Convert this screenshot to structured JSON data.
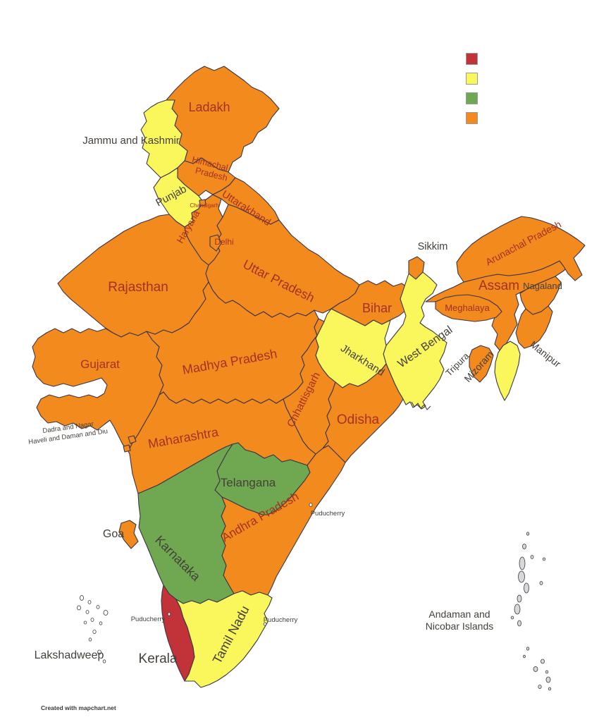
{
  "map": {
    "attribution": "Created with mapchart.net",
    "colors": {
      "orange": "#F28A1D",
      "yellow": "#F9F75B",
      "green": "#6FA850",
      "red": "#C13239",
      "island_white": "#FDFDFD",
      "island_gray": "#D8D8D8",
      "border": "#3B3544",
      "label_red": "#A33222",
      "label_gray": "#44403B"
    },
    "legend": [
      {
        "id": "red",
        "color": "#C13239",
        "label": ""
      },
      {
        "id": "yellow",
        "color": "#F9F75B",
        "label": ""
      },
      {
        "id": "green",
        "color": "#6FA850",
        "label": ""
      },
      {
        "id": "orange",
        "color": "#F28A1D",
        "label": ""
      }
    ],
    "regions": [
      {
        "id": "ladakh",
        "name": "Ladakh",
        "category": "orange",
        "label_style": "red"
      },
      {
        "id": "jammu-and-kashmir",
        "name": "Jammu and Kashmir",
        "category": "yellow",
        "label_style": "gray"
      },
      {
        "id": "himachal-pradesh",
        "name": "Himachal Pradesh",
        "label_lines": [
          "Himachal",
          "Pradesh"
        ],
        "category": "orange",
        "label_style": "red"
      },
      {
        "id": "punjab",
        "name": "Punjab",
        "category": "yellow",
        "label_style": "gray"
      },
      {
        "id": "chandigarh",
        "name": "Chandigarh",
        "category": "orange",
        "label_style": "red"
      },
      {
        "id": "uttarakhand",
        "name": "Uttarakhand",
        "category": "orange",
        "label_style": "red"
      },
      {
        "id": "haryana",
        "name": "Haryana",
        "category": "orange",
        "label_style": "red"
      },
      {
        "id": "delhi",
        "name": "Delhi",
        "category": "orange",
        "label_style": "red"
      },
      {
        "id": "rajasthan",
        "name": "Rajasthan",
        "category": "orange",
        "label_style": "red"
      },
      {
        "id": "uttar-pradesh",
        "name": "Uttar Pradesh",
        "category": "orange",
        "label_style": "red"
      },
      {
        "id": "bihar",
        "name": "Bihar",
        "category": "orange",
        "label_style": "red"
      },
      {
        "id": "sikkim",
        "name": "Sikkim",
        "category": "orange",
        "label_style": "gray"
      },
      {
        "id": "west-bengal",
        "name": "West Bengal",
        "category": "yellow",
        "label_style": "gray"
      },
      {
        "id": "jharkhand",
        "name": "Jharkhand",
        "category": "yellow",
        "label_style": "gray"
      },
      {
        "id": "gujarat",
        "name": "Gujarat",
        "category": "orange",
        "label_style": "red"
      },
      {
        "id": "madhya-pradesh",
        "name": "Madhya Pradesh",
        "category": "orange",
        "label_style": "red"
      },
      {
        "id": "chhattisgarh",
        "name": "Chhattisgarh",
        "category": "orange",
        "label_style": "red"
      },
      {
        "id": "odisha",
        "name": "Odisha",
        "category": "orange",
        "label_style": "red"
      },
      {
        "id": "maharashtra",
        "name": "Maharashtra",
        "category": "orange",
        "label_style": "red"
      },
      {
        "id": "dadra-and-nagar-haveli-and-daman-and-diu",
        "name": "Dadra and Nagar Haveli and Daman and Diu",
        "label_lines": [
          "Dadra and Nagar",
          "Haveli and Daman and Diu"
        ],
        "category": "orange",
        "label_style": "gray"
      },
      {
        "id": "telangana",
        "name": "Telangana",
        "category": "green",
        "label_style": "gray"
      },
      {
        "id": "andhra-pradesh",
        "name": "Andhra Pradesh",
        "category": "orange",
        "label_style": "red"
      },
      {
        "id": "karnataka",
        "name": "Karnataka",
        "category": "green",
        "label_style": "gray"
      },
      {
        "id": "goa",
        "name": "Goa",
        "category": "orange",
        "label_style": "gray"
      },
      {
        "id": "kerala",
        "name": "Kerala",
        "category": "red",
        "label_style": "gray"
      },
      {
        "id": "tamil-nadu",
        "name": "Tamil Nadu",
        "category": "yellow",
        "label_style": "gray"
      },
      {
        "id": "puducherry",
        "name": "Puducherry",
        "category": "island_white",
        "label_style": "gray"
      },
      {
        "id": "lakshadweep",
        "name": "Lakshadweep",
        "category": "island_white",
        "label_style": "gray"
      },
      {
        "id": "andaman-and-nicobar-islands",
        "name": "Andaman and Nicobar Islands",
        "label_lines": [
          "Andaman and",
          "Nicobar Islands"
        ],
        "category": "island_gray",
        "label_style": "gray"
      },
      {
        "id": "arunachal-pradesh",
        "name": "Arunachal Pradesh",
        "category": "orange",
        "label_style": "red"
      },
      {
        "id": "assam",
        "name": "Assam",
        "category": "orange",
        "label_style": "red"
      },
      {
        "id": "nagaland",
        "name": "Nagaland",
        "category": "orange",
        "label_style": "gray"
      },
      {
        "id": "manipur",
        "name": "Manipur",
        "category": "orange",
        "label_style": "gray"
      },
      {
        "id": "meghalaya",
        "name": "Meghalaya",
        "category": "orange",
        "label_style": "red"
      },
      {
        "id": "mizoram",
        "name": "Mizoram",
        "category": "yellow",
        "label_style": "gray"
      },
      {
        "id": "tripura",
        "name": "Tripura",
        "category": "orange",
        "label_style": "gray"
      }
    ]
  }
}
